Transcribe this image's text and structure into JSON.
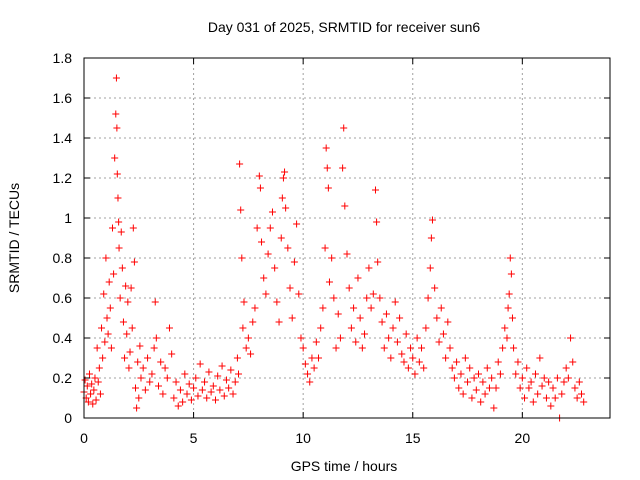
{
  "chart_data": {
    "type": "scatter",
    "title": "Day 031 of 2025, SRMTID for receiver sun6",
    "xlabel": "GPS time / hours",
    "ylabel": "SRMTID / TECUs",
    "xlim": [
      0,
      24
    ],
    "ylim": [
      0,
      1.8
    ],
    "x_ticks": [
      0,
      5,
      10,
      15,
      20
    ],
    "x_tick_labels": [
      "0",
      "5",
      "10",
      "15",
      "20"
    ],
    "y_ticks": [
      0,
      0.2,
      0.4,
      0.6,
      0.8,
      1,
      1.2,
      1.4,
      1.6,
      1.8
    ],
    "y_tick_labels": [
      "0",
      "0.2",
      "0.4",
      "0.6",
      "0.8",
      "1",
      "1.2",
      "1.4",
      "1.6",
      "1.8"
    ],
    "grid": true,
    "marker": "+",
    "marker_color": "#ff0000",
    "series": [
      {
        "name": "SRMTID",
        "points": [
          [
            0.0,
            0.13
          ],
          [
            0.05,
            0.19
          ],
          [
            0.1,
            0.1
          ],
          [
            0.15,
            0.16
          ],
          [
            0.2,
            0.08
          ],
          [
            0.25,
            0.22
          ],
          [
            0.3,
            0.12
          ],
          [
            0.35,
            0.17
          ],
          [
            0.4,
            0.07
          ],
          [
            0.45,
            0.14
          ],
          [
            0.5,
            0.2
          ],
          [
            0.55,
            0.09
          ],
          [
            0.6,
            0.35
          ],
          [
            0.65,
            0.18
          ],
          [
            0.7,
            0.25
          ],
          [
            0.75,
            0.12
          ],
          [
            0.8,
            0.45
          ],
          [
            0.85,
            0.3
          ],
          [
            0.9,
            0.62
          ],
          [
            0.95,
            0.38
          ],
          [
            1.0,
            0.8
          ],
          [
            1.05,
            0.5
          ],
          [
            1.1,
            0.42
          ],
          [
            1.15,
            0.68
          ],
          [
            1.2,
            0.55
          ],
          [
            1.25,
            0.35
          ],
          [
            1.3,
            0.95
          ],
          [
            1.35,
            0.72
          ],
          [
            1.4,
            1.3
          ],
          [
            1.45,
            1.52
          ],
          [
            1.48,
            1.7
          ],
          [
            1.5,
            1.45
          ],
          [
            1.52,
            1.22
          ],
          [
            1.55,
            1.1
          ],
          [
            1.58,
            0.98
          ],
          [
            1.6,
            0.85
          ],
          [
            1.65,
            0.6
          ],
          [
            1.7,
            0.93
          ],
          [
            1.75,
            0.75
          ],
          [
            1.8,
            0.48
          ],
          [
            1.85,
            0.3
          ],
          [
            1.9,
            0.66
          ],
          [
            1.95,
            0.42
          ],
          [
            2.0,
            0.58
          ],
          [
            2.05,
            0.25
          ],
          [
            2.1,
            0.33
          ],
          [
            2.15,
            0.65
          ],
          [
            2.2,
            0.45
          ],
          [
            2.25,
            0.95
          ],
          [
            2.3,
            0.78
          ],
          [
            2.35,
            0.15
          ],
          [
            2.4,
            0.05
          ],
          [
            2.45,
            0.28
          ],
          [
            2.5,
            0.1
          ],
          [
            2.55,
            0.36
          ],
          [
            2.6,
            0.2
          ],
          [
            2.7,
            0.25
          ],
          [
            2.8,
            0.14
          ],
          [
            2.9,
            0.3
          ],
          [
            3.0,
            0.18
          ],
          [
            3.1,
            0.22
          ],
          [
            3.2,
            0.35
          ],
          [
            3.25,
            0.58
          ],
          [
            3.3,
            0.4
          ],
          [
            3.4,
            0.16
          ],
          [
            3.5,
            0.28
          ],
          [
            3.6,
            0.12
          ],
          [
            3.7,
            0.25
          ],
          [
            3.8,
            0.2
          ],
          [
            3.9,
            0.45
          ],
          [
            4.0,
            0.32
          ],
          [
            4.1,
            0.1
          ],
          [
            4.2,
            0.18
          ],
          [
            4.3,
            0.06
          ],
          [
            4.4,
            0.14
          ],
          [
            4.5,
            0.08
          ],
          [
            4.6,
            0.22
          ],
          [
            4.7,
            0.12
          ],
          [
            4.8,
            0.17
          ],
          [
            4.9,
            0.09
          ],
          [
            5.0,
            0.15
          ],
          [
            5.1,
            0.2
          ],
          [
            5.2,
            0.11
          ],
          [
            5.3,
            0.27
          ],
          [
            5.4,
            0.14
          ],
          [
            5.5,
            0.18
          ],
          [
            5.6,
            0.1
          ],
          [
            5.7,
            0.23
          ],
          [
            5.8,
            0.13
          ],
          [
            5.9,
            0.16
          ],
          [
            6.0,
            0.09
          ],
          [
            6.1,
            0.21
          ],
          [
            6.2,
            0.14
          ],
          [
            6.3,
            0.26
          ],
          [
            6.4,
            0.11
          ],
          [
            6.5,
            0.19
          ],
          [
            6.6,
            0.15
          ],
          [
            6.7,
            0.24
          ],
          [
            6.8,
            0.12
          ],
          [
            6.9,
            0.18
          ],
          [
            7.0,
            0.3
          ],
          [
            7.05,
            0.22
          ],
          [
            7.1,
            1.27
          ],
          [
            7.15,
            1.04
          ],
          [
            7.2,
            0.8
          ],
          [
            7.25,
            0.45
          ],
          [
            7.3,
            0.58
          ],
          [
            7.4,
            0.35
          ],
          [
            7.5,
            0.4
          ],
          [
            7.6,
            0.32
          ],
          [
            7.7,
            0.48
          ],
          [
            7.8,
            0.55
          ],
          [
            7.9,
            0.95
          ],
          [
            8.0,
            1.21
          ],
          [
            8.05,
            1.15
          ],
          [
            8.1,
            0.88
          ],
          [
            8.2,
            0.7
          ],
          [
            8.3,
            0.62
          ],
          [
            8.4,
            0.82
          ],
          [
            8.5,
            0.95
          ],
          [
            8.6,
            1.03
          ],
          [
            8.7,
            0.75
          ],
          [
            8.8,
            0.58
          ],
          [
            8.9,
            0.48
          ],
          [
            9.0,
            0.9
          ],
          [
            9.05,
            1.1
          ],
          [
            9.1,
            1.2
          ],
          [
            9.15,
            1.23
          ],
          [
            9.2,
            1.05
          ],
          [
            9.3,
            0.85
          ],
          [
            9.4,
            0.65
          ],
          [
            9.5,
            0.5
          ],
          [
            9.6,
            0.78
          ],
          [
            9.7,
            0.97
          ],
          [
            9.8,
            0.62
          ],
          [
            9.9,
            0.4
          ],
          [
            10.0,
            0.35
          ],
          [
            10.1,
            0.27
          ],
          [
            10.2,
            0.22
          ],
          [
            10.3,
            0.18
          ],
          [
            10.4,
            0.3
          ],
          [
            10.5,
            0.25
          ],
          [
            10.6,
            0.38
          ],
          [
            10.7,
            0.3
          ],
          [
            10.8,
            0.45
          ],
          [
            10.9,
            0.55
          ],
          [
            11.0,
            0.85
          ],
          [
            11.05,
            1.35
          ],
          [
            11.1,
            1.25
          ],
          [
            11.15,
            1.15
          ],
          [
            11.2,
            0.68
          ],
          [
            11.3,
            0.8
          ],
          [
            11.4,
            0.6
          ],
          [
            11.5,
            0.35
          ],
          [
            11.6,
            0.52
          ],
          [
            11.7,
            0.4
          ],
          [
            11.8,
            1.25
          ],
          [
            11.85,
            1.45
          ],
          [
            11.9,
            1.06
          ],
          [
            12.0,
            0.82
          ],
          [
            12.1,
            0.65
          ],
          [
            12.2,
            0.45
          ],
          [
            12.3,
            0.55
          ],
          [
            12.4,
            0.38
          ],
          [
            12.5,
            0.7
          ],
          [
            12.6,
            0.5
          ],
          [
            12.7,
            0.35
          ],
          [
            12.8,
            0.42
          ],
          [
            12.9,
            0.6
          ],
          [
            13.0,
            0.75
          ],
          [
            13.1,
            0.55
          ],
          [
            13.2,
            0.62
          ],
          [
            13.3,
            1.14
          ],
          [
            13.35,
            0.98
          ],
          [
            13.4,
            0.78
          ],
          [
            13.5,
            0.6
          ],
          [
            13.6,
            0.48
          ],
          [
            13.7,
            0.35
          ],
          [
            13.8,
            0.52
          ],
          [
            13.9,
            0.4
          ],
          [
            14.0,
            0.3
          ],
          [
            14.1,
            0.45
          ],
          [
            14.2,
            0.58
          ],
          [
            14.3,
            0.38
          ],
          [
            14.4,
            0.5
          ],
          [
            14.5,
            0.32
          ],
          [
            14.6,
            0.28
          ],
          [
            14.7,
            0.42
          ],
          [
            14.8,
            0.25
          ],
          [
            14.9,
            0.35
          ],
          [
            15.0,
            0.3
          ],
          [
            15.1,
            0.22
          ],
          [
            15.2,
            0.4
          ],
          [
            15.3,
            0.28
          ],
          [
            15.4,
            0.35
          ],
          [
            15.5,
            0.25
          ],
          [
            15.6,
            0.45
          ],
          [
            15.7,
            0.6
          ],
          [
            15.8,
            0.75
          ],
          [
            15.85,
            0.9
          ],
          [
            15.9,
            0.99
          ],
          [
            16.0,
            0.65
          ],
          [
            16.1,
            0.5
          ],
          [
            16.2,
            0.38
          ],
          [
            16.3,
            0.55
          ],
          [
            16.4,
            0.42
          ],
          [
            16.5,
            0.3
          ],
          [
            16.6,
            0.48
          ],
          [
            16.7,
            0.35
          ],
          [
            16.8,
            0.25
          ],
          [
            16.9,
            0.2
          ],
          [
            17.0,
            0.28
          ],
          [
            17.1,
            0.15
          ],
          [
            17.2,
            0.22
          ],
          [
            17.3,
            0.12
          ],
          [
            17.4,
            0.3
          ],
          [
            17.5,
            0.18
          ],
          [
            17.6,
            0.25
          ],
          [
            17.7,
            0.1
          ],
          [
            17.8,
            0.2
          ],
          [
            17.9,
            0.14
          ],
          [
            18.0,
            0.22
          ],
          [
            18.1,
            0.08
          ],
          [
            18.2,
            0.18
          ],
          [
            18.3,
            0.12
          ],
          [
            18.4,
            0.25
          ],
          [
            18.5,
            0.15
          ],
          [
            18.6,
            0.2
          ],
          [
            18.7,
            0.05
          ],
          [
            18.8,
            0.15
          ],
          [
            18.9,
            0.28
          ],
          [
            19.0,
            0.22
          ],
          [
            19.1,
            0.35
          ],
          [
            19.2,
            0.45
          ],
          [
            19.3,
            0.4
          ],
          [
            19.35,
            0.55
          ],
          [
            19.4,
            0.62
          ],
          [
            19.45,
            0.8
          ],
          [
            19.5,
            0.72
          ],
          [
            19.55,
            0.5
          ],
          [
            19.6,
            0.35
          ],
          [
            19.7,
            0.22
          ],
          [
            19.8,
            0.28
          ],
          [
            19.9,
            0.15
          ],
          [
            20.0,
            0.2
          ],
          [
            20.1,
            0.1
          ],
          [
            20.2,
            0.25
          ],
          [
            20.3,
            0.15
          ],
          [
            20.4,
            0.18
          ],
          [
            20.5,
            0.08
          ],
          [
            20.6,
            0.22
          ],
          [
            20.7,
            0.12
          ],
          [
            20.8,
            0.3
          ],
          [
            20.9,
            0.16
          ],
          [
            21.0,
            0.2
          ],
          [
            21.1,
            0.1
          ],
          [
            21.2,
            0.18
          ],
          [
            21.3,
            0.06
          ],
          [
            21.4,
            0.15
          ],
          [
            21.5,
            0.1
          ],
          [
            21.6,
            0.2
          ],
          [
            21.7,
            0.0
          ],
          [
            21.8,
            0.12
          ],
          [
            21.9,
            0.18
          ],
          [
            22.0,
            0.25
          ],
          [
            22.1,
            0.2
          ],
          [
            22.2,
            0.4
          ],
          [
            22.3,
            0.28
          ],
          [
            22.4,
            0.15
          ],
          [
            22.5,
            0.1
          ],
          [
            22.6,
            0.18
          ],
          [
            22.7,
            0.12
          ],
          [
            22.8,
            0.08
          ]
        ]
      }
    ]
  }
}
